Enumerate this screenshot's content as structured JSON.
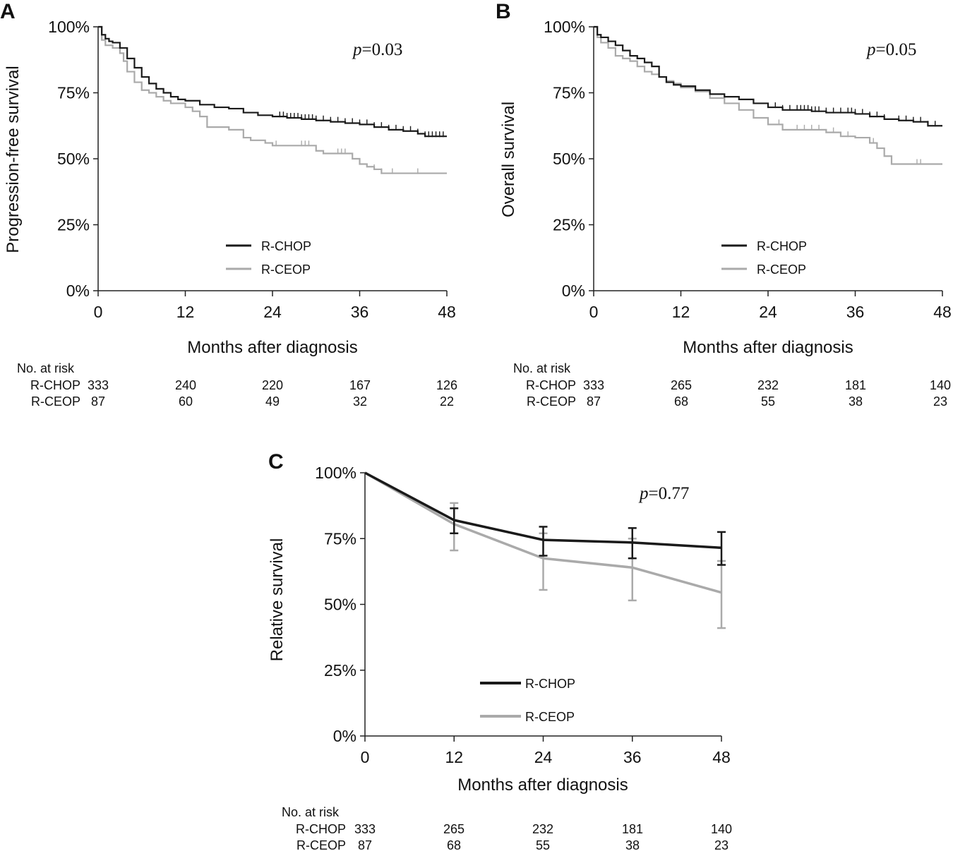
{
  "colors": {
    "chop": "#1a1a1a",
    "ceop": "#aaaaaa",
    "axis": "#222222",
    "text": "#111111"
  },
  "chart_data": [
    {
      "panel": "A",
      "type": "line",
      "style": "step",
      "ylabel": "Progression-free survival",
      "xlabel": "Months after diagnosis",
      "p_prefix": "p",
      "p_text": "=0.03",
      "xticks": [
        0,
        12,
        24,
        36,
        48
      ],
      "xtick_labels": [
        "0",
        "12",
        "24",
        "36",
        "48"
      ],
      "yticks": [
        0,
        25,
        50,
        75,
        100
      ],
      "ytick_labels": [
        "0%",
        "25%",
        "50%",
        "75%",
        "100%"
      ],
      "xlim": [
        0,
        48
      ],
      "ylim": [
        0,
        100
      ],
      "legend": [
        "R-CHOP",
        "R-CEOP"
      ],
      "legend_position": "center-bottom",
      "series": [
        {
          "name": "R-CHOP",
          "x": [
            0,
            0.5,
            1,
            1.5,
            2,
            3,
            4,
            5,
            6,
            7,
            8,
            9,
            10,
            11,
            12,
            14,
            16,
            18,
            20,
            22,
            24,
            26,
            28,
            30,
            32,
            34,
            36,
            38,
            40,
            42,
            44,
            45,
            48
          ],
          "y": [
            100,
            97,
            95.5,
            94.5,
            94,
            92,
            88,
            84.5,
            81,
            78.5,
            76.5,
            75,
            73.5,
            72.5,
            72,
            70.5,
            69.5,
            69,
            67.5,
            66.5,
            66,
            65.5,
            65,
            64.5,
            64,
            63.5,
            63,
            62,
            61,
            60.5,
            59.5,
            58.5,
            58.5
          ]
        },
        {
          "name": "R-CEOP",
          "x": [
            0,
            0.5,
            1,
            2,
            3,
            3.5,
            4,
            5,
            6,
            7,
            8,
            9,
            10,
            12,
            13,
            14,
            15,
            17,
            18,
            20,
            21,
            23,
            24,
            26,
            30,
            31,
            35,
            36,
            37,
            38,
            39,
            48
          ],
          "y": [
            100,
            95,
            93,
            92,
            90,
            87,
            83,
            79,
            76,
            75,
            73.5,
            72,
            71,
            69.5,
            68,
            66,
            62,
            62,
            61,
            58,
            57,
            56,
            55,
            55,
            53,
            52,
            50,
            48,
            47,
            46,
            44.5,
            44.5
          ]
        }
      ],
      "censor_marks": [
        {
          "series": "R-CHOP",
          "x": [
            25,
            25.5,
            26,
            26.5,
            27,
            27.5,
            28,
            28.5,
            29,
            29.5,
            30,
            31,
            32,
            33,
            34,
            35,
            36,
            37,
            38,
            39,
            40,
            41,
            42,
            43,
            44,
            45,
            45.5,
            46,
            46.5,
            47,
            47.5
          ]
        },
        {
          "series": "R-CEOP",
          "x": [
            24.5,
            28,
            28.5,
            29,
            33,
            33.5,
            34,
            38,
            39,
            40.5,
            44
          ]
        }
      ],
      "at_risk": {
        "title": "No. at risk",
        "rows": [
          {
            "label": "R-CHOP",
            "values": [
              "333",
              "240",
              "220",
              "167",
              "126"
            ]
          },
          {
            "label": "R-CEOP",
            "values": [
              "87",
              "60",
              "49",
              "32",
              "22"
            ]
          }
        ]
      }
    },
    {
      "panel": "B",
      "type": "line",
      "style": "step",
      "ylabel": "Overall survival",
      "xlabel": "Months after diagnosis",
      "p_prefix": "p",
      "p_text": "=0.05",
      "xticks": [
        0,
        12,
        24,
        36,
        48
      ],
      "xtick_labels": [
        "0",
        "12",
        "24",
        "36",
        "48"
      ],
      "yticks": [
        0,
        25,
        50,
        75,
        100
      ],
      "ytick_labels": [
        "0%",
        "25%",
        "50%",
        "75%",
        "100%"
      ],
      "xlim": [
        0,
        48
      ],
      "ylim": [
        0,
        100
      ],
      "legend": [
        "R-CHOP",
        "R-CEOP"
      ],
      "legend_position": "center-bottom",
      "series": [
        {
          "name": "R-CHOP",
          "x": [
            0,
            0.5,
            1,
            2,
            3,
            4,
            5,
            6,
            7,
            8,
            9,
            10,
            11,
            12,
            14,
            16,
            18,
            20,
            22,
            24,
            26,
            28,
            30,
            32,
            34,
            36,
            38,
            40,
            42,
            44,
            46,
            48
          ],
          "y": [
            100,
            97,
            96,
            94.5,
            93,
            91,
            89,
            88,
            86.5,
            85,
            81,
            79,
            78,
            77.5,
            76,
            74.5,
            73.5,
            72.5,
            71,
            69.5,
            68.5,
            68.5,
            68,
            67.5,
            67.5,
            67,
            66,
            65,
            64.5,
            64,
            62.5,
            62.5
          ]
        },
        {
          "name": "R-CEOP",
          "x": [
            0,
            0.5,
            1,
            2,
            3,
            4,
            5,
            6,
            7,
            8,
            9,
            10,
            11,
            12,
            14,
            16,
            18,
            20,
            22,
            24,
            26,
            30,
            32,
            34,
            36,
            38,
            39,
            40,
            41,
            48
          ],
          "y": [
            100,
            96,
            94,
            92,
            89,
            88,
            87,
            85,
            83,
            82,
            81,
            79.5,
            78.5,
            77,
            75.5,
            73,
            71,
            68.5,
            65.5,
            63,
            61,
            61,
            60,
            58.5,
            58,
            56,
            54,
            51,
            48,
            48
          ]
        }
      ],
      "censor_marks": [
        {
          "series": "R-CHOP",
          "x": [
            25,
            26,
            27,
            28,
            28.5,
            29,
            29.5,
            30,
            30.5,
            31,
            32,
            33,
            34,
            35,
            35.5,
            36,
            37,
            38,
            39,
            40,
            42,
            43,
            44,
            45,
            46,
            47
          ]
        },
        {
          "series": "R-CEOP",
          "x": [
            25.5,
            28,
            29,
            30,
            31,
            33,
            35,
            38,
            38.5,
            39,
            44.5,
            45
          ]
        }
      ],
      "at_risk": {
        "title": "No. at risk",
        "rows": [
          {
            "label": "R-CHOP",
            "values": [
              "333",
              "265",
              "232",
              "181",
              "140"
            ]
          },
          {
            "label": "R-CEOP",
            "values": [
              "87",
              "68",
              "55",
              "38",
              "23"
            ]
          }
        ]
      }
    },
    {
      "panel": "C",
      "type": "line",
      "style": "errorbar",
      "ylabel": "Relative survival",
      "xlabel": "Months after diagnosis",
      "p_prefix": "p",
      "p_text": "=0.77",
      "xticks": [
        0,
        12,
        24,
        36,
        48
      ],
      "xtick_labels": [
        "0",
        "12",
        "24",
        "36",
        "48"
      ],
      "yticks": [
        0,
        25,
        50,
        75,
        100
      ],
      "ytick_labels": [
        "0%",
        "25%",
        "50%",
        "75%",
        "100%"
      ],
      "xlim": [
        0,
        48
      ],
      "ylim": [
        0,
        100
      ],
      "legend": [
        "R-CHOP",
        "R-CEOP"
      ],
      "legend_position": "center-bottom",
      "series": [
        {
          "name": "R-CHOP",
          "x": [
            0,
            12,
            24,
            36,
            48
          ],
          "y": [
            100,
            82,
            74.5,
            73.5,
            71.5
          ],
          "lower": [
            null,
            77,
            68.5,
            67.5,
            65
          ],
          "upper": [
            null,
            86.5,
            79.5,
            79,
            77.5
          ]
        },
        {
          "name": "R-CEOP",
          "x": [
            0,
            12,
            24,
            36,
            48
          ],
          "y": [
            100,
            80.5,
            67.5,
            64,
            54.5
          ],
          "lower": [
            null,
            70.5,
            55.5,
            51.5,
            41
          ],
          "upper": [
            null,
            88.5,
            77,
            75,
            66.5
          ]
        }
      ],
      "at_risk": {
        "title": "No. at risk",
        "rows": [
          {
            "label": "R-CHOP",
            "values": [
              "333",
              "265",
              "232",
              "181",
              "140"
            ]
          },
          {
            "label": "R-CEOP",
            "values": [
              "87",
              "68",
              "55",
              "38",
              "23"
            ]
          }
        ]
      }
    }
  ]
}
